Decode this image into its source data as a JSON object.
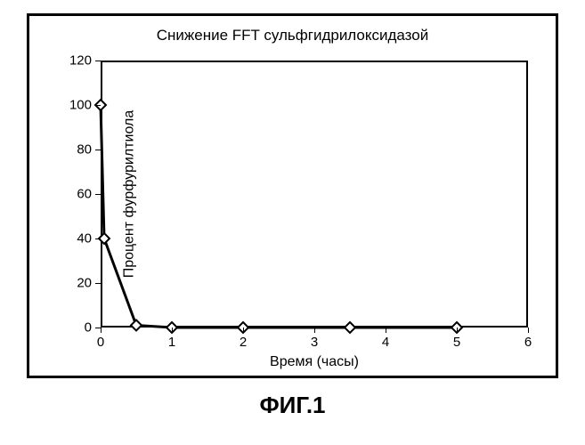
{
  "figure_label": "ФИГ.1",
  "chart": {
    "type": "line",
    "title": "Снижение FFT сульфгидрилоксидазой",
    "title_fontsize": 17,
    "xlabel": "Время (часы)",
    "ylabel": "Процент фурфурилтиола",
    "label_fontsize": 16,
    "tick_fontsize": 15,
    "xlim": [
      0,
      6
    ],
    "ylim": [
      0,
      120
    ],
    "xticks": [
      0,
      1,
      2,
      3,
      4,
      5,
      6
    ],
    "yticks": [
      0,
      20,
      40,
      60,
      80,
      100,
      120
    ],
    "x_values": [
      0,
      0.05,
      0.5,
      1,
      2,
      3.5,
      5
    ],
    "y_values": [
      100,
      40,
      1,
      0,
      0,
      0,
      0
    ],
    "line_color": "#000000",
    "line_width": 3,
    "marker_style": "diamond",
    "marker_size": 12,
    "marker_fill": "#ffffff",
    "marker_stroke": "#000000",
    "marker_stroke_width": 2,
    "background_color": "#ffffff",
    "border_color": "#000000",
    "border_width": 2,
    "outer_frame_width": 3
  }
}
